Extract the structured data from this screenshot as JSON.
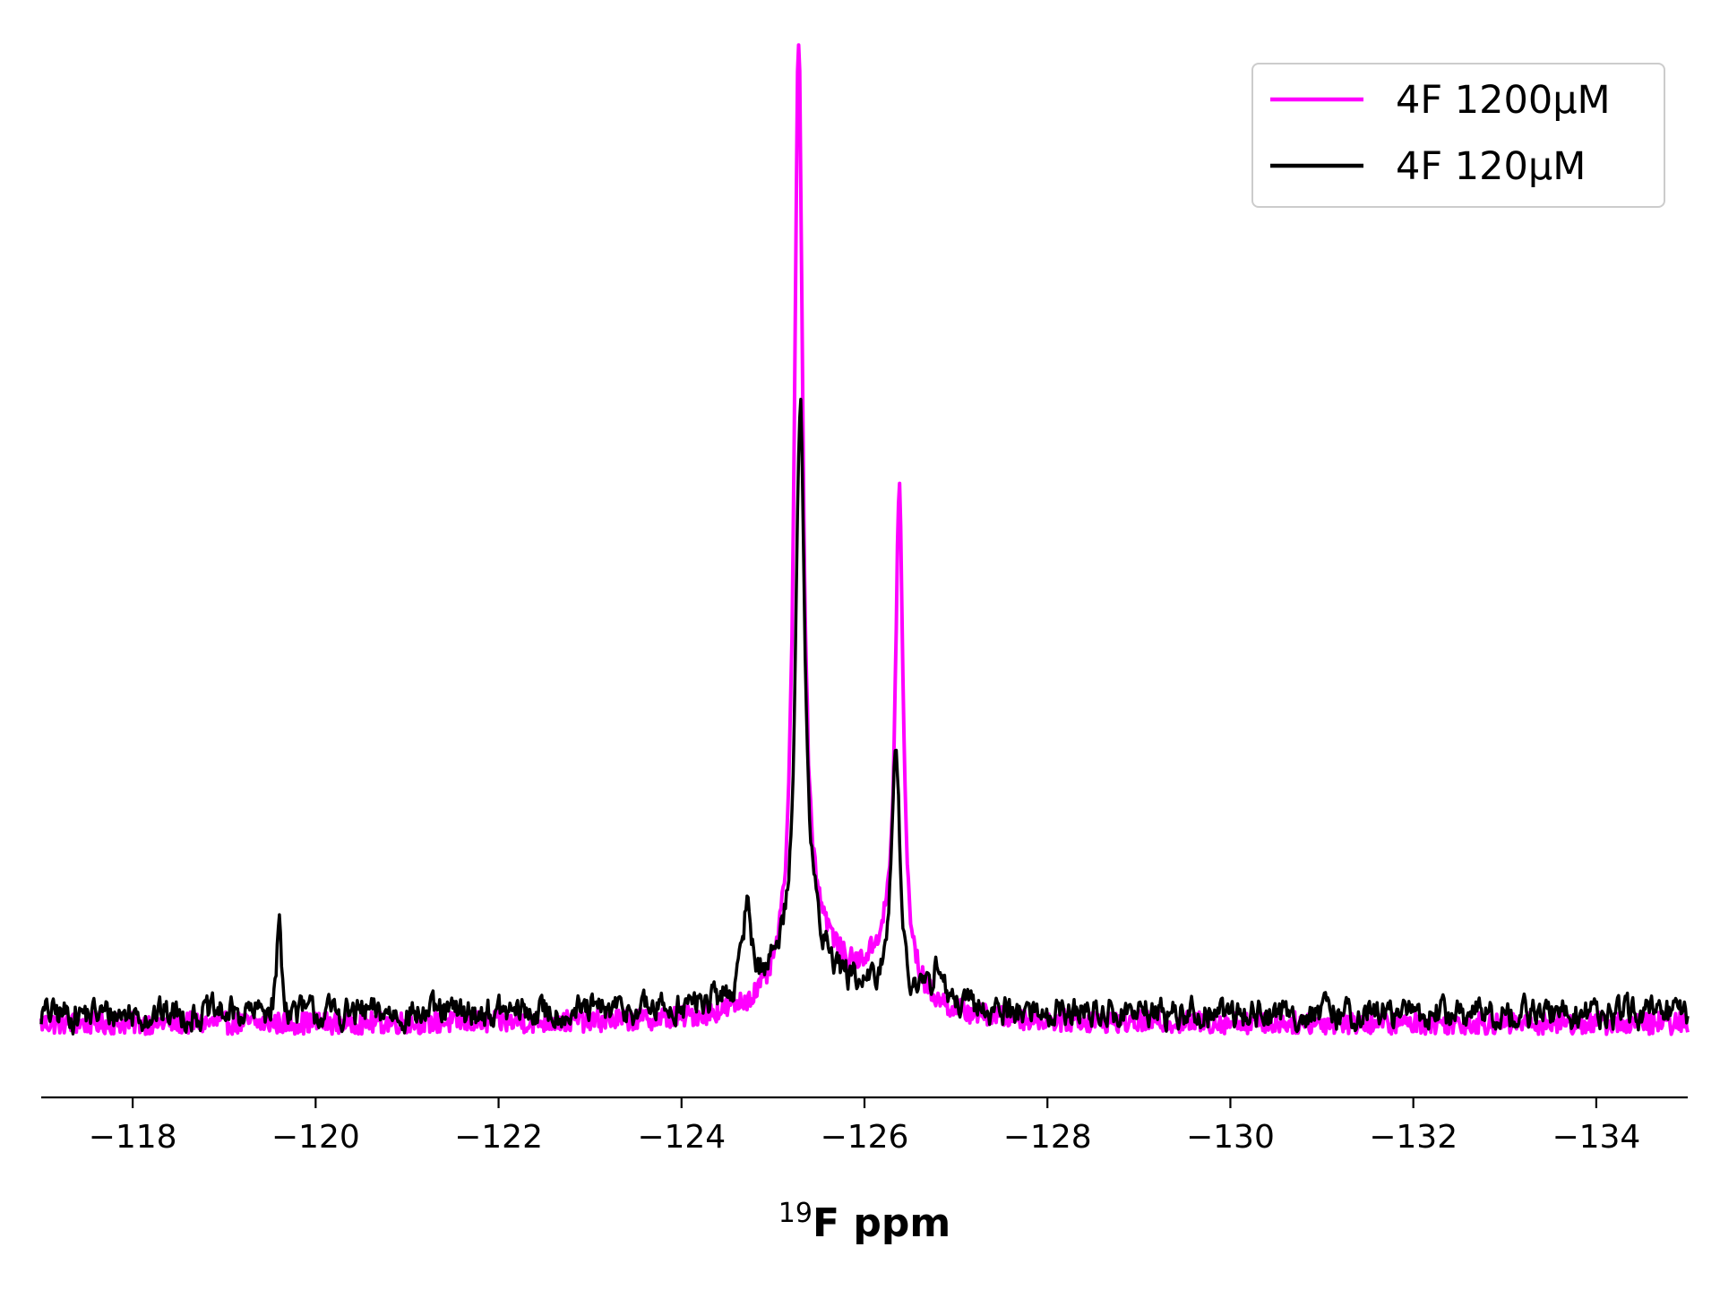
{
  "chart_data": {
    "type": "line",
    "title": "",
    "xlabel": {
      "superscript": "19",
      "text": "F ppm"
    },
    "ylabel": "",
    "xlim": [
      -117,
      -135
    ],
    "ylim": [
      -0.08,
      1.05
    ],
    "x_reversed": true,
    "y_axis_visible": false,
    "grid": false,
    "legend_position": "top-right",
    "x_ticks": [
      -118,
      -120,
      -122,
      -124,
      -126,
      -128,
      -130,
      -132,
      -134
    ],
    "x_tick_labels": [
      "−118",
      "−120",
      "−122",
      "−124",
      "−126",
      "−128",
      "−130",
      "−132",
      "−134"
    ],
    "series": [
      {
        "name": "4F 1200µM",
        "color": "#ff00ff",
        "baseline": 0.0,
        "noise_amplitude": 0.012,
        "peaks": [
          {
            "center": -125.28,
            "height": 1.0,
            "width": 0.055
          },
          {
            "center": -125.45,
            "height": 0.08,
            "width": 0.35
          },
          {
            "center": -126.38,
            "height": 0.52,
            "width": 0.05
          },
          {
            "center": -126.25,
            "height": 0.06,
            "width": 0.3
          }
        ]
      },
      {
        "name": "4F 120µM",
        "color": "#000000",
        "baseline": 0.01,
        "noise_amplitude": 0.03,
        "peaks": [
          {
            "center": -125.3,
            "height": 0.6,
            "width": 0.06
          },
          {
            "center": -125.35,
            "height": 0.06,
            "width": 0.5
          },
          {
            "center": -126.34,
            "height": 0.29,
            "width": 0.055
          },
          {
            "center": -124.72,
            "height": 0.1,
            "width": 0.05
          },
          {
            "center": -126.8,
            "height": 0.05,
            "width": 0.06
          },
          {
            "center": -119.6,
            "height": 0.1,
            "width": 0.03
          }
        ]
      }
    ]
  }
}
